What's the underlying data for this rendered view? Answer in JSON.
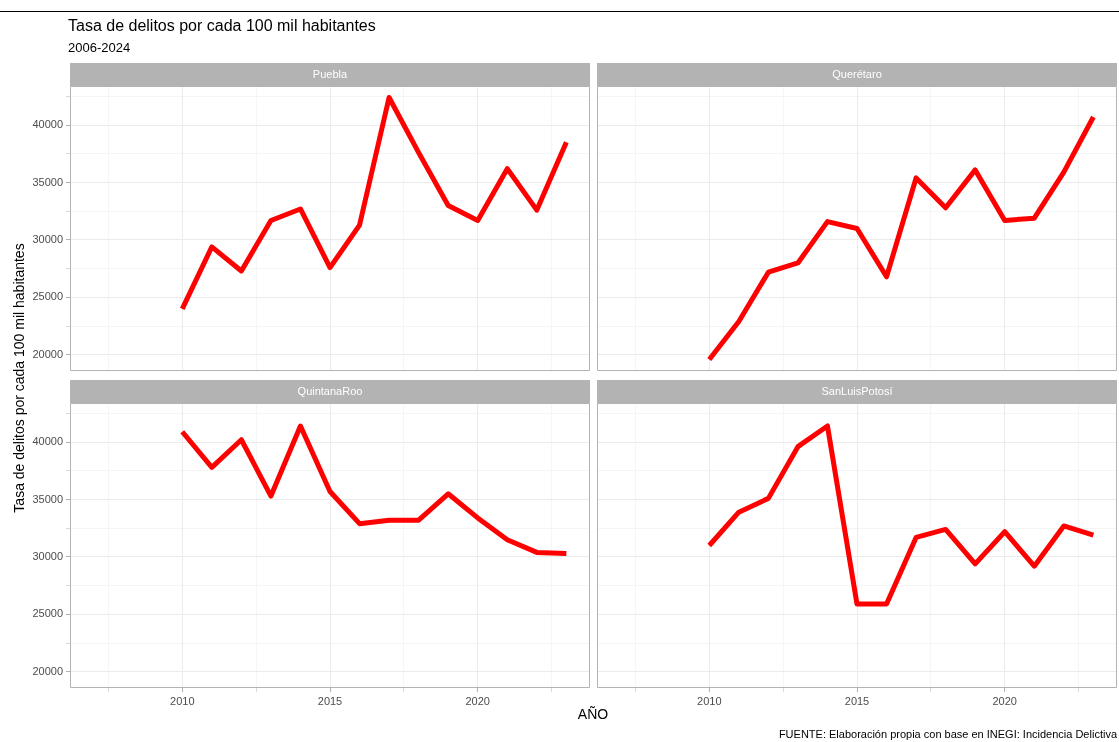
{
  "chart_data": [
    {
      "type": "other",
      "title": "Tasa de delitos por cada 100 mil habitantes",
      "subtitle": "2006-2024",
      "xlabel": "AÑO",
      "ylabel": "Tasa de delitos por cada 100 mil habitantes",
      "annotations": [
        "FUENTE: Elaboración propia con base en INEGI: Incidencia Delictiva"
      ]
    },
    {
      "type": "line",
      "title": "Puebla",
      "x": [
        2010,
        2011,
        2012,
        2013,
        2014,
        2015,
        2016,
        2017,
        2018,
        2019,
        2020,
        2021,
        2022,
        2023
      ],
      "series": [
        {
          "color": "#ff0000",
          "values": [
            24000,
            29400,
            27300,
            31700,
            32700,
            27600,
            31300,
            42400,
            37600,
            33000,
            31700,
            36200,
            32600,
            38500
          ]
        }
      ],
      "xlim": [
        2006.2,
        2023.8
      ],
      "ylim": [
        18600,
        43400
      ],
      "xticks": [
        {
          "value": 2007.5,
          "label": null
        },
        2010,
        {
          "value": 2012.5,
          "label": null
        },
        2015,
        {
          "value": 2017.5,
          "label": null
        },
        2020,
        {
          "value": 2022.5,
          "label": null
        }
      ],
      "yticks": [
        20000,
        {
          "value": 22500,
          "label": null
        },
        25000,
        {
          "value": 27500,
          "label": null
        },
        30000,
        {
          "value": 32500,
          "label": null
        },
        35000,
        {
          "value": 37500,
          "label": null
        },
        40000,
        {
          "value": 42500,
          "label": null
        }
      ],
      "grid": true,
      "marker": "none",
      "tick_labels": "y"
    },
    {
      "type": "line",
      "title": "Querétaro",
      "x": [
        2010,
        2011,
        2012,
        2013,
        2014,
        2015,
        2016,
        2017,
        2018,
        2019,
        2020,
        2021,
        2022,
        2023
      ],
      "series": [
        {
          "color": "#ff0000",
          "values": [
            19600,
            22900,
            27200,
            28000,
            31600,
            31000,
            26800,
            35400,
            32800,
            36100,
            31700,
            31900,
            35900,
            40700
          ]
        }
      ],
      "xlim": [
        2006.2,
        2023.8
      ],
      "ylim": [
        18600,
        43400
      ],
      "xticks": [
        {
          "value": 2007.5,
          "label": null
        },
        2010,
        {
          "value": 2012.5,
          "label": null
        },
        2015,
        {
          "value": 2017.5,
          "label": null
        },
        2020,
        {
          "value": 2022.5,
          "label": null
        }
      ],
      "yticks": [
        20000,
        {
          "value": 22500,
          "label": null
        },
        25000,
        {
          "value": 27500,
          "label": null
        },
        30000,
        {
          "value": 32500,
          "label": null
        },
        35000,
        {
          "value": 37500,
          "label": null
        },
        40000,
        {
          "value": 42500,
          "label": null
        }
      ],
      "grid": true,
      "marker": "none",
      "tick_labels": false
    },
    {
      "type": "line",
      "title": "QuintanaRoo",
      "x": [
        2010,
        2011,
        2012,
        2013,
        2014,
        2015,
        2016,
        2017,
        2018,
        2019,
        2020,
        2021,
        2022,
        2023
      ],
      "series": [
        {
          "color": "#ff0000",
          "values": [
            40900,
            37800,
            40200,
            35300,
            41400,
            35700,
            32900,
            33200,
            33200,
            35500,
            33400,
            31500,
            30400,
            30300
          ]
        }
      ],
      "xlim": [
        2006.2,
        2023.8
      ],
      "ylim": [
        18600,
        43400
      ],
      "xticks": [
        {
          "value": 2007.5,
          "label": null
        },
        2010,
        {
          "value": 2012.5,
          "label": null
        },
        2015,
        {
          "value": 2017.5,
          "label": null
        },
        2020,
        {
          "value": 2022.5,
          "label": null
        }
      ],
      "yticks": [
        20000,
        {
          "value": 22500,
          "label": null
        },
        25000,
        {
          "value": 27500,
          "label": null
        },
        30000,
        {
          "value": 32500,
          "label": null
        },
        35000,
        {
          "value": 37500,
          "label": null
        },
        40000,
        {
          "value": 42500,
          "label": null
        }
      ],
      "grid": true,
      "marker": "none"
    },
    {
      "type": "line",
      "title": "SanLuisPotosí",
      "x": [
        2010,
        2011,
        2012,
        2013,
        2014,
        2015,
        2016,
        2017,
        2018,
        2019,
        2020,
        2021,
        2022,
        2023
      ],
      "series": [
        {
          "color": "#ff0000",
          "values": [
            31000,
            33900,
            35100,
            39600,
            41400,
            25900,
            25900,
            31700,
            32400,
            29400,
            32200,
            29200,
            32700,
            31900
          ]
        }
      ],
      "xlim": [
        2006.2,
        2023.8
      ],
      "ylim": [
        18600,
        43400
      ],
      "xticks": [
        {
          "value": 2007.5,
          "label": null
        },
        2010,
        {
          "value": 2012.5,
          "label": null
        },
        2015,
        {
          "value": 2017.5,
          "label": null
        },
        2020,
        {
          "value": 2022.5,
          "label": null
        }
      ],
      "yticks": [
        20000,
        {
          "value": 22500,
          "label": null
        },
        25000,
        {
          "value": 27500,
          "label": null
        },
        30000,
        {
          "value": 32500,
          "label": null
        },
        35000,
        {
          "value": 37500,
          "label": null
        },
        40000,
        {
          "value": 42500,
          "label": null
        }
      ],
      "grid": true,
      "marker": "none",
      "tick_labels": "x"
    }
  ]
}
